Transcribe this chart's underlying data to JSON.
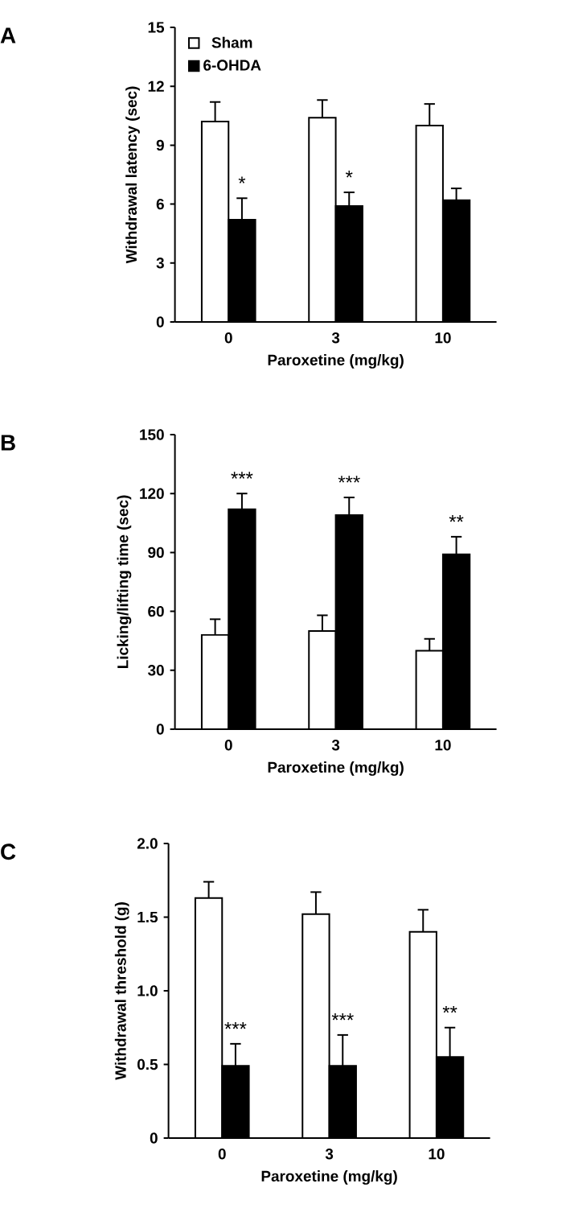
{
  "chart_data": [
    {
      "type": "bar",
      "title": "A",
      "xlabel": "Paroxetine (mg/kg)",
      "ylabel": "Withdrawal latency (sec)",
      "categories": [
        "0",
        "3",
        "10"
      ],
      "ylim": [
        0,
        15
      ],
      "yticks": [
        0,
        3,
        6,
        9,
        12,
        15
      ],
      "legend": "top left",
      "series": [
        {
          "name": "Sham",
          "color": "#ffffff",
          "values": [
            10.2,
            10.4,
            10.0
          ],
          "errors": [
            [
              10.2,
              11.2
            ],
            [
              10.4,
              11.3
            ],
            [
              10.0,
              11.1
            ]
          ]
        },
        {
          "name": "6-OHDA",
          "color": "#000000",
          "values": [
            5.2,
            5.9,
            6.2
          ],
          "errors": [
            [
              5.2,
              6.3
            ],
            [
              5.9,
              6.6
            ],
            [
              6.2,
              6.8
            ]
          ]
        }
      ],
      "annotations": [
        {
          "text": "*",
          "x": "0",
          "y": 5.2
        },
        {
          "text": "*",
          "x": "3",
          "y": 5.9
        }
      ]
    },
    {
      "type": "bar",
      "title": "B",
      "xlabel": "Paroxetine (mg/kg)",
      "ylabel": "Licking/lifting time (sec)",
      "categories": [
        "0",
        "3",
        "10"
      ],
      "ylim": [
        0,
        150
      ],
      "yticks": [
        0,
        30,
        60,
        90,
        120,
        150
      ],
      "series": [
        {
          "color": "#ffffff",
          "values": [
            48,
            50,
            40
          ],
          "errors": [
            [
              48,
              56
            ],
            [
              50,
              58
            ],
            [
              40,
              46
            ]
          ]
        },
        {
          "color": "#000000",
          "values": [
            112,
            109,
            89
          ],
          "errors": [
            [
              112,
              120
            ],
            [
              109,
              118
            ],
            [
              89,
              98
            ]
          ]
        }
      ],
      "annotations": [
        {
          "text": "***",
          "x": "0",
          "y": 112
        },
        {
          "text": "***",
          "x": "3",
          "y": 109
        },
        {
          "text": "**",
          "x": "10",
          "y": 89
        }
      ]
    },
    {
      "type": "bar",
      "title": "C",
      "xlabel": "Paroxetine (mg/kg)",
      "ylabel": "Withdrawal threshold (g)",
      "categories": [
        "0",
        "3",
        "10"
      ],
      "ylim": [
        0,
        2
      ],
      "yticks": [
        0,
        0.5,
        {
          "value": 1,
          "label": "1.0"
        },
        1.5,
        {
          "value": 2,
          "label": "2.0"
        }
      ],
      "series": [
        {
          "color": "#ffffff",
          "values": [
            1.63,
            1.52,
            1.4
          ],
          "errors": [
            [
              1.63,
              1.74
            ],
            [
              1.52,
              1.67
            ],
            [
              1.4,
              1.55
            ]
          ]
        },
        {
          "color": "#000000",
          "values": [
            0.49,
            0.49,
            0.55
          ],
          "errors": [
            [
              0.49,
              0.64
            ],
            [
              0.49,
              0.7
            ],
            [
              0.55,
              0.75
            ]
          ]
        }
      ],
      "annotations": [
        {
          "text": "***",
          "x": "0",
          "y": 0.49
        },
        {
          "text": "***",
          "x": "3",
          "y": 0.49
        },
        {
          "text": "**",
          "x": "10",
          "y": 0.55
        }
      ]
    }
  ]
}
